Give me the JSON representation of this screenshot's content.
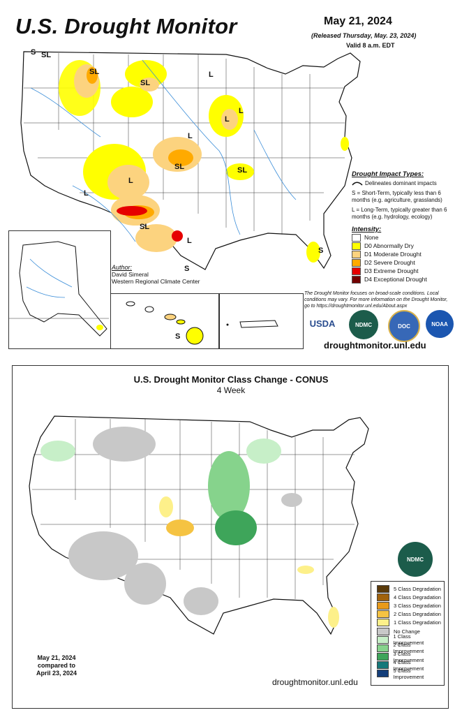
{
  "top": {
    "title": "U.S. Drought Monitor",
    "date": "May 21, 2024",
    "released": "(Released Thursday, May. 23, 2024)",
    "valid": "Valid 8 a.m. EDT",
    "impact_types": {
      "heading": "Drought Impact Types:",
      "delineates": "Delineates dominant impacts",
      "short_term": "S = Short-Term, typically less than 6 months (e.g. agriculture, grasslands)",
      "long_term": "L = Long-Term, typically greater than 6 months (e.g. hydrology, ecology)"
    },
    "intensity": {
      "heading": "Intensity:",
      "items": [
        {
          "label": "None",
          "color": "#ffffff"
        },
        {
          "label": "D0 Abnormally Dry",
          "color": "#ffff00"
        },
        {
          "label": "D1 Moderate Drought",
          "color": "#fcd37f"
        },
        {
          "label": "D2 Severe Drought",
          "color": "#ffaa00"
        },
        {
          "label": "D3 Extreme Drought",
          "color": "#e60000"
        },
        {
          "label": "D4 Exceptional Drought",
          "color": "#730000"
        }
      ]
    },
    "note": "The Drought Monitor focuses on broad-scale conditions. Local conditions may vary. For more information on the Drought Monitor, go to https://droughtmonitor.unl.edu/About.aspx",
    "author": {
      "heading": "Author:",
      "name": "David Simeral",
      "org": "Western Regional Climate Center"
    },
    "logos": [
      "USDA",
      "NDMC",
      "DOC",
      "NOAA"
    ],
    "url": "droughtmonitor.unl.edu",
    "map_labels": [
      "S",
      "SL",
      "SL",
      "SL",
      "L",
      "L",
      "L",
      "SL",
      "L",
      "SL",
      "L",
      "SL",
      "L",
      "L",
      "S",
      "S",
      "S"
    ]
  },
  "bottom": {
    "title": "U.S. Drought Monitor Class Change - CONUS",
    "subtitle": "4 Week",
    "legend": [
      {
        "label": "5 Class Degradation",
        "color": "#5a3a0a"
      },
      {
        "label": "4 Class Degradation",
        "color": "#a0620c"
      },
      {
        "label": "3 Class Degradation",
        "color": "#e89a1a"
      },
      {
        "label": "2 Class Degradation",
        "color": "#f5c342"
      },
      {
        "label": "1 Class Degradation",
        "color": "#fdf08a"
      },
      {
        "label": "No Change",
        "color": "#c8c8c8"
      },
      {
        "label": "1 Class Improvement",
        "color": "#c7efc8"
      },
      {
        "label": "2 Class Improvement",
        "color": "#86d38c"
      },
      {
        "label": "3 Class Improvement",
        "color": "#3ea55a"
      },
      {
        "label": "4 Class Improvement",
        "color": "#15787a"
      },
      {
        "label": "5 Class Improvement",
        "color": "#143e7a"
      }
    ],
    "comparison": [
      "May 21, 2024",
      "compared to",
      "April 23, 2024"
    ],
    "logo": "NDMC",
    "url": "droughtmonitor.unl.edu"
  }
}
